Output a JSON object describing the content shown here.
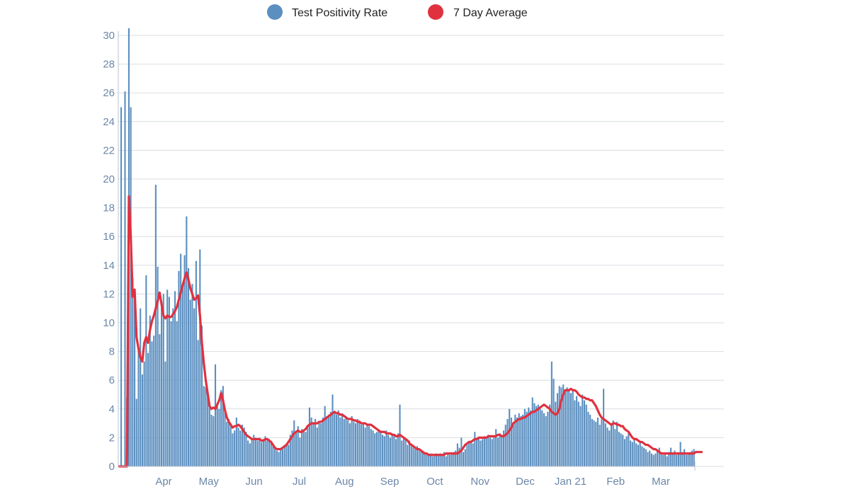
{
  "legend": {
    "items": [
      {
        "label": "Test Positivity Rate",
        "color": "#5b8fc0"
      },
      {
        "label": "7 Day Average",
        "color": "#e0313f"
      }
    ],
    "placement": "top-center"
  },
  "chart_data": {
    "type": "bar",
    "title": "",
    "xlabel": "",
    "ylabel": "",
    "ylim": [
      0,
      30
    ],
    "y_ticks": [
      0,
      2,
      4,
      6,
      8,
      10,
      12,
      14,
      16,
      18,
      20,
      22,
      24,
      26,
      28,
      30
    ],
    "x_tick_labels": [
      "Apr",
      "May",
      "Jun",
      "Jul",
      "Aug",
      "Sep",
      "Oct",
      "Nov",
      "Dec",
      "Jan 21",
      "Feb",
      "Mar"
    ],
    "grid": "horizontal",
    "bar_color": "#5b8fc0",
    "line_color": "#e0313f",
    "series": [
      {
        "name": "Test Positivity Rate",
        "kind": "bar",
        "values": [
          0,
          25.0,
          0,
          26.1,
          4.8,
          30.5,
          25.0,
          13.1,
          12.3,
          4.7,
          8.4,
          11.0,
          6.4,
          7.3,
          13.3,
          7.9,
          10.5,
          8.7,
          9.1,
          19.6,
          13.9,
          9.2,
          11.3,
          12.0,
          7.3,
          12.3,
          11.8,
          10.1,
          11.0,
          12.2,
          10.1,
          13.6,
          14.8,
          12.5,
          14.7,
          17.4,
          13.8,
          11.6,
          12.7,
          11.0,
          14.3,
          8.8,
          15.1,
          9.8,
          5.6,
          5.5,
          5.0,
          4.4,
          3.6,
          3.5,
          7.1,
          4.2,
          4.0,
          5.3,
          5.6,
          3.9,
          3.1,
          3.3,
          2.8,
          2.3,
          2.5,
          3.4,
          2.7,
          2.5,
          2.9,
          2.7,
          2.4,
          1.8,
          1.6,
          1.9,
          2.2,
          2.0,
          1.8,
          2.0,
          1.7,
          1.9,
          2.1,
          1.8,
          1.9,
          1.7,
          1.4,
          1.3,
          1.1,
          1.0,
          1.3,
          1.2,
          1.4,
          1.6,
          1.5,
          2.2,
          2.5,
          3.2,
          2.4,
          2.8,
          2.0,
          2.6,
          2.5,
          2.4,
          2.9,
          4.1,
          3.4,
          3.0,
          3.3,
          2.7,
          3.1,
          3.0,
          3.4,
          4.2,
          3.5,
          3.6,
          3.8,
          5.0,
          3.7,
          3.6,
          3.9,
          3.4,
          3.7,
          3.3,
          3.5,
          3.2,
          3.0,
          3.5,
          3.1,
          3.0,
          3.3,
          3.2,
          2.9,
          3.0,
          2.7,
          2.9,
          2.8,
          2.6,
          2.5,
          2.3,
          2.4,
          2.5,
          2.4,
          2.2,
          2.1,
          2.5,
          2.2,
          2.0,
          2.3,
          2.1,
          1.9,
          2.3,
          4.3,
          1.8,
          2.0,
          1.9,
          1.5,
          1.8,
          1.4,
          1.3,
          1.2,
          1.4,
          1.1,
          1.0,
          1.0,
          0.9,
          0.8,
          0.8,
          0.9,
          0.7,
          0.8,
          0.9,
          0.8,
          0.9,
          0.8,
          1.0,
          0.7,
          0.9,
          0.8,
          0.9,
          1.0,
          1.1,
          1.6,
          1.3,
          2.0,
          1.0,
          1.2,
          1.5,
          1.7,
          1.8,
          1.6,
          2.4,
          1.9,
          2.0,
          1.8,
          1.9,
          2.1,
          2.0,
          2.2,
          2.0,
          1.9,
          2.1,
          2.6,
          2.0,
          2.3,
          2.2,
          2.5,
          2.9,
          3.3,
          4.0,
          3.4,
          3.0,
          3.6,
          3.4,
          3.7,
          3.5,
          3.6,
          4.0,
          3.8,
          4.1,
          3.9,
          4.8,
          4.4,
          4.2,
          4.3,
          4.0,
          3.9,
          3.7,
          3.5,
          3.8,
          4.3,
          7.3,
          6.1,
          4.5,
          5.1,
          5.6,
          5.5,
          5.7,
          5.2,
          5.5,
          5.4,
          5.1,
          5.3,
          4.6,
          4.9,
          4.5,
          4.2,
          5.0,
          4.6,
          4.3,
          3.8,
          3.6,
          3.3,
          3.2,
          3.1,
          3.4,
          2.9,
          3.3,
          5.4,
          3.0,
          2.7,
          2.5,
          2.9,
          3.2,
          2.6,
          3.1,
          2.4,
          2.3,
          2.2,
          1.9,
          2.1,
          2.3,
          1.8,
          1.7,
          1.9,
          1.6,
          1.5,
          1.7,
          1.4,
          1.3,
          1.2,
          1.0,
          1.1,
          0.9,
          0.8,
          0.9,
          1.2,
          1.3,
          1.0,
          0.8,
          0.9,
          0.7,
          1.0,
          1.3,
          0.9,
          1.1,
          0.8,
          0.9,
          1.7,
          1.0,
          1.2,
          0.8,
          0.9,
          1.0,
          1.1,
          1.2
        ]
      },
      {
        "name": "7 Day Average",
        "kind": "line",
        "values": [
          0,
          0,
          0,
          0,
          0,
          18.8,
          16.0,
          11.8,
          12.3,
          9.0,
          8.2,
          7.6,
          7.3,
          8.6,
          9.0,
          8.6,
          9.5,
          10.1,
          10.5,
          11.0,
          11.5,
          12.1,
          11.3,
          10.5,
          10.3,
          10.5,
          10.4,
          10.4,
          10.6,
          10.8,
          11.1,
          11.6,
          12.1,
          12.6,
          13.1,
          13.5,
          13.0,
          12.4,
          12.0,
          11.6,
          11.7,
          11.9,
          10.5,
          8.6,
          7.2,
          6.0,
          5.1,
          4.2,
          4.0,
          4.1,
          4.0,
          4.3,
          4.6,
          5.1,
          4.6,
          3.9,
          3.4,
          3.1,
          2.9,
          2.7,
          2.8,
          2.8,
          2.9,
          2.8,
          2.6,
          2.4,
          2.2,
          2.1,
          2.0,
          1.9,
          1.9,
          1.9,
          1.9,
          1.9,
          1.8,
          1.8,
          1.9,
          1.9,
          1.8,
          1.7,
          1.5,
          1.3,
          1.2,
          1.2,
          1.2,
          1.3,
          1.4,
          1.5,
          1.7,
          1.9,
          2.1,
          2.3,
          2.4,
          2.5,
          2.4,
          2.4,
          2.5,
          2.6,
          2.8,
          2.9,
          3.0,
          3.0,
          3.0,
          3.0,
          3.1,
          3.1,
          3.2,
          3.3,
          3.4,
          3.5,
          3.6,
          3.7,
          3.8,
          3.7,
          3.7,
          3.6,
          3.6,
          3.5,
          3.4,
          3.3,
          3.3,
          3.3,
          3.2,
          3.2,
          3.1,
          3.1,
          3.0,
          3.0,
          3.0,
          2.9,
          2.9,
          2.9,
          2.8,
          2.7,
          2.6,
          2.5,
          2.4,
          2.4,
          2.4,
          2.3,
          2.3,
          2.3,
          2.2,
          2.2,
          2.1,
          2.1,
          2.2,
          2.1,
          2.0,
          1.9,
          1.8,
          1.6,
          1.5,
          1.4,
          1.3,
          1.2,
          1.2,
          1.1,
          1.0,
          0.9,
          0.9,
          0.8,
          0.8,
          0.8,
          0.8,
          0.8,
          0.8,
          0.8,
          0.8,
          0.8,
          0.9,
          0.9,
          0.9,
          0.9,
          0.9,
          0.9,
          0.9,
          1.0,
          1.1,
          1.3,
          1.5,
          1.6,
          1.7,
          1.7,
          1.8,
          1.9,
          1.9,
          2.0,
          2.0,
          2.0,
          2.0,
          2.0,
          2.1,
          2.1,
          2.1,
          2.1,
          2.1,
          2.2,
          2.2,
          2.1,
          2.1,
          2.2,
          2.3,
          2.5,
          2.7,
          3.0,
          3.1,
          3.2,
          3.3,
          3.3,
          3.4,
          3.4,
          3.5,
          3.6,
          3.7,
          3.8,
          3.8,
          3.9,
          4.0,
          4.1,
          4.2,
          4.3,
          4.2,
          4.1,
          4.0,
          3.8,
          3.7,
          3.6,
          3.7,
          4.0,
          4.6,
          5.0,
          5.3,
          5.3,
          5.3,
          5.4,
          5.3,
          5.3,
          5.2,
          5.0,
          4.9,
          4.8,
          4.8,
          4.7,
          4.7,
          4.6,
          4.6,
          4.4,
          4.2,
          3.9,
          3.6,
          3.4,
          3.3,
          3.2,
          3.1,
          3.0,
          2.9,
          3.0,
          3.0,
          2.9,
          2.9,
          2.8,
          2.8,
          2.6,
          2.5,
          2.4,
          2.2,
          2.0,
          1.9,
          1.9,
          1.8,
          1.7,
          1.7,
          1.6,
          1.5,
          1.5,
          1.4,
          1.3,
          1.2,
          1.2,
          1.1,
          1.0,
          0.9,
          0.9,
          0.9,
          0.9,
          0.9,
          0.9,
          0.9,
          0.9,
          0.9,
          0.9,
          0.9,
          0.9,
          0.9,
          0.9,
          0.9,
          0.9,
          0.9,
          0.9,
          1.0,
          1.0,
          1.0,
          1.0
        ]
      }
    ]
  }
}
